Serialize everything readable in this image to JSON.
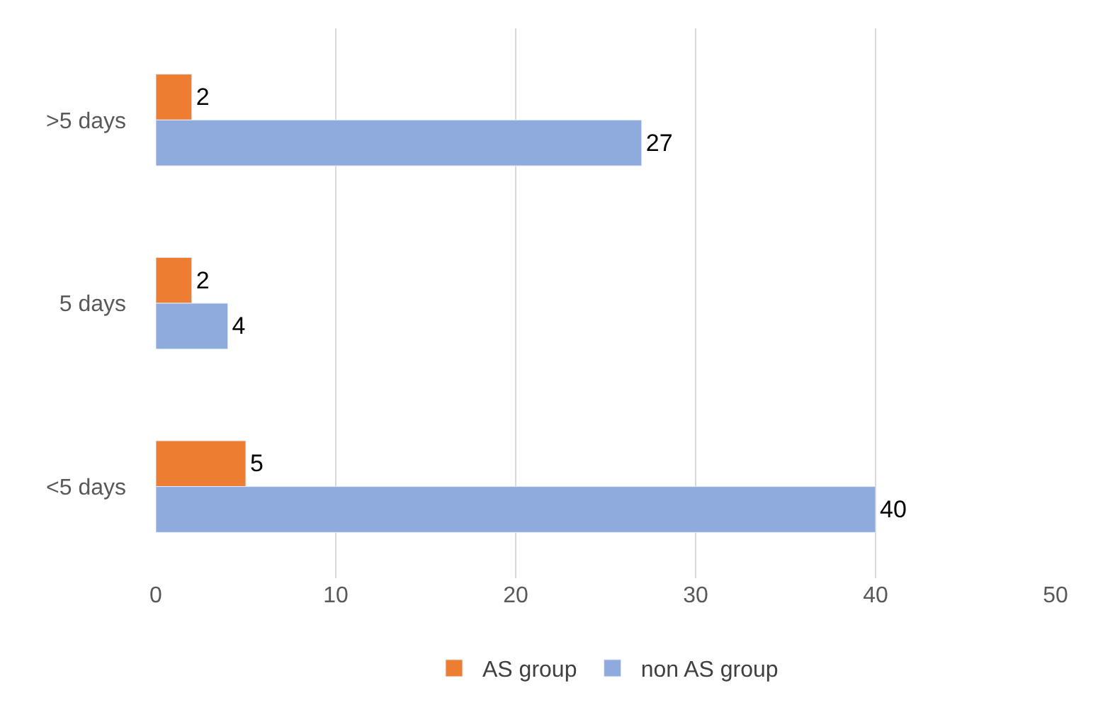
{
  "chart_data": {
    "type": "bar",
    "orientation": "horizontal",
    "categories": [
      ">5 days",
      "5 days",
      "<5 days"
    ],
    "series": [
      {
        "name": "AS group",
        "color": "#ed7d31",
        "values": [
          2,
          2,
          5
        ]
      },
      {
        "name": "non AS group",
        "color": "#8faadc",
        "values": [
          27,
          4,
          40
        ]
      }
    ],
    "xlim": [
      0,
      50
    ],
    "xticks": [
      0,
      10,
      20,
      30,
      40,
      50
    ],
    "grid": "x",
    "legend": "bottom",
    "data_labels": true
  }
}
